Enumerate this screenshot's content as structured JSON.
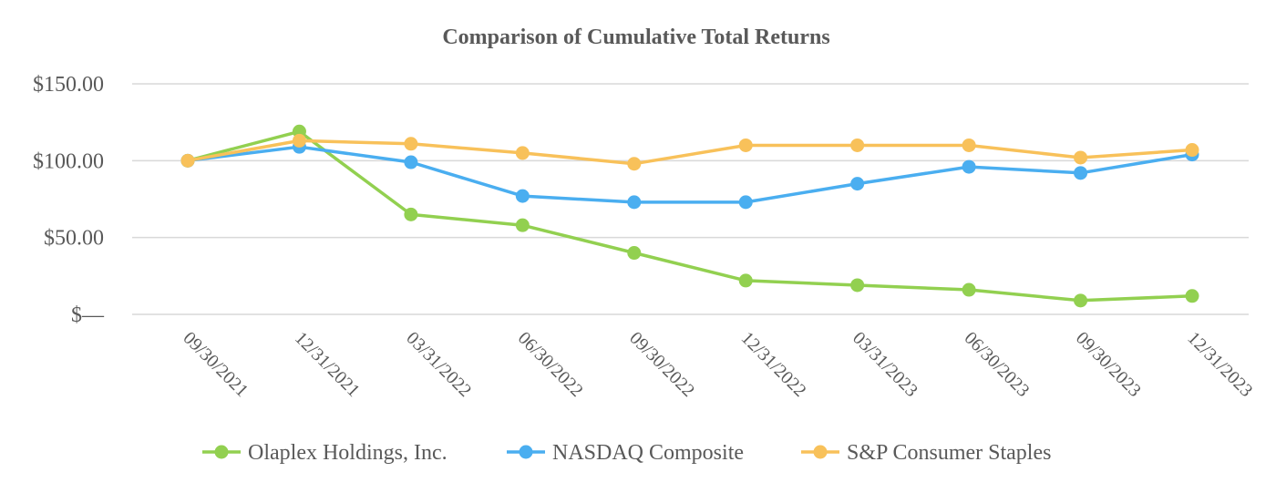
{
  "chart_data": {
    "type": "line",
    "title": "Comparison of Cumulative Total Returns",
    "xlabel": "",
    "ylabel": "",
    "x": [
      "09/30/2021",
      "12/31/2021",
      "03/31/2022",
      "06/30/2022",
      "09/30/2022",
      "12/31/2022",
      "03/31/2023",
      "06/30/2023",
      "09/30/2023",
      "12/31/2023"
    ],
    "yticks": [
      "$—",
      "$50.00",
      "$100.00",
      "$150.00"
    ],
    "ylim": [
      0,
      150
    ],
    "grid": true,
    "legend_position": "bottom",
    "series": [
      {
        "name": "Olaplex Holdings, Inc.",
        "color": "#92d050",
        "values": [
          100,
          119,
          65,
          58,
          40,
          22,
          19,
          16,
          9,
          12
        ]
      },
      {
        "name": "NASDAQ Composite",
        "color": "#4aaef0",
        "values": [
          100,
          109,
          99,
          77,
          73,
          73,
          85,
          96,
          92,
          104
        ]
      },
      {
        "name": "S&P Consumer Staples",
        "color": "#f8c15a",
        "values": [
          100,
          113,
          111,
          105,
          98,
          110,
          110,
          110,
          102,
          107
        ]
      }
    ]
  }
}
